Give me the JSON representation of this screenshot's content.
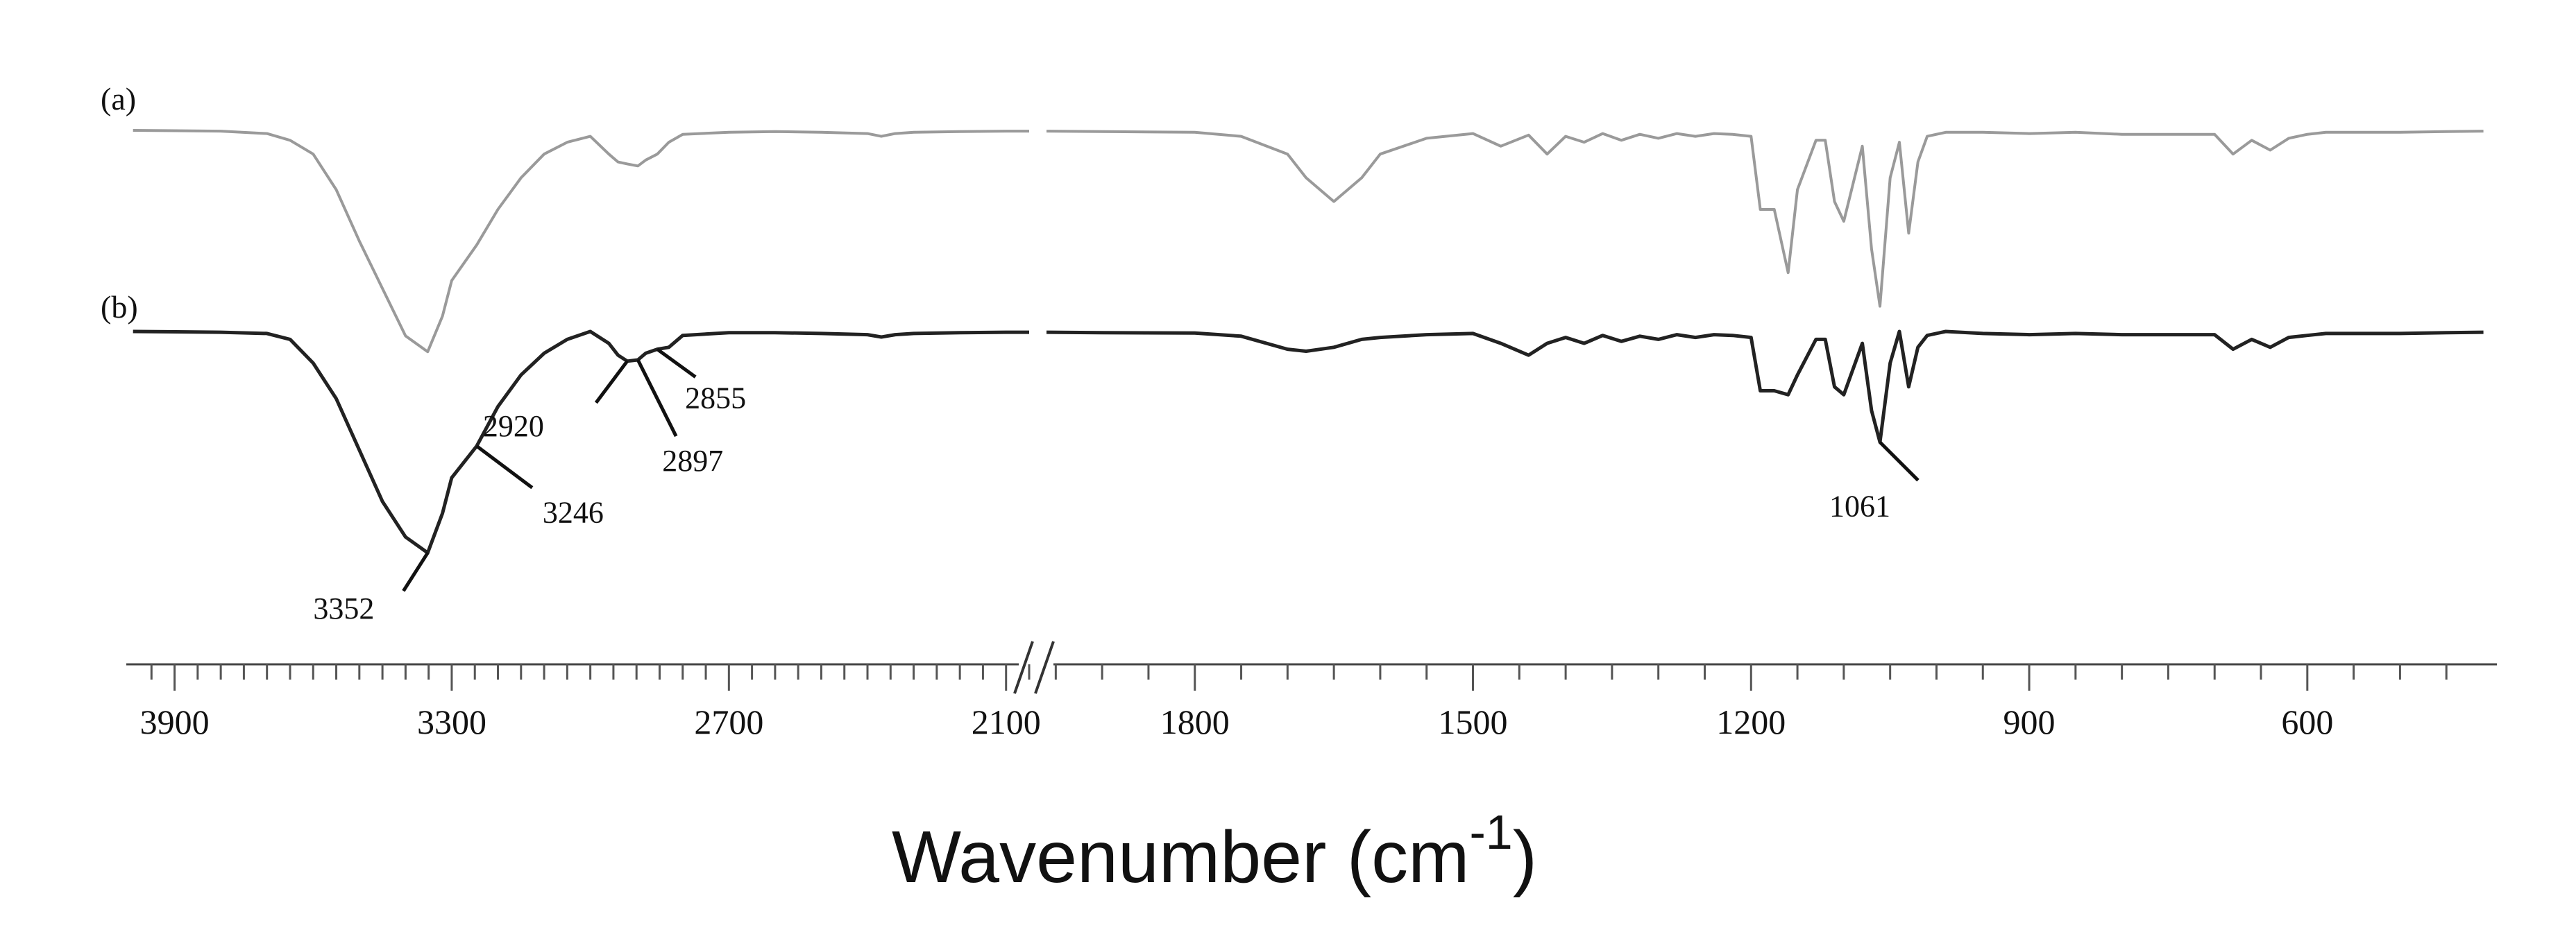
{
  "chart_data": {
    "type": "line",
    "title": "",
    "xlabel": "Wavenumber (cm",
    "xlabel_superscript": "-1",
    "xlabel_close": ")",
    "ylabel": "",
    "x_axis_reversed": true,
    "x_axis_break": [
      2050,
      1960
    ],
    "xlim": [
      4000,
      400
    ],
    "x_ticks": [
      3900,
      3300,
      2700,
      2100,
      1800,
      1500,
      1200,
      900,
      600
    ],
    "grid": false,
    "series_color_a": "#9a9a9a",
    "series_color_b": "#222222",
    "series": [
      {
        "name": "(a)",
        "baseline": 0,
        "x": [
          3990,
          3800,
          3700,
          3650,
          3600,
          3550,
          3500,
          3450,
          3400,
          3352,
          3320,
          3300,
          3246,
          3200,
          3150,
          3100,
          3050,
          3000,
          2960,
          2940,
          2920,
          2897,
          2880,
          2855,
          2830,
          2800,
          2700,
          2600,
          2500,
          2400,
          2370,
          2340,
          2300,
          2200,
          2100,
          2050,
          1960,
          1900,
          1800,
          1750,
          1700,
          1680,
          1650,
          1620,
          1600,
          1550,
          1500,
          1470,
          1440,
          1420,
          1400,
          1380,
          1360,
          1340,
          1320,
          1300,
          1280,
          1260,
          1240,
          1220,
          1200,
          1190,
          1175,
          1160,
          1150,
          1130,
          1120,
          1110,
          1100,
          1080,
          1070,
          1061,
          1050,
          1040,
          1030,
          1020,
          1010,
          990,
          950,
          900,
          850,
          800,
          700,
          680,
          660,
          640,
          620,
          600,
          580,
          560,
          500,
          450,
          410
        ],
        "y": [
          0,
          -2,
          -8,
          -25,
          -60,
          -150,
          -280,
          -400,
          -520,
          -560,
          -470,
          -380,
          -290,
          -200,
          -120,
          -60,
          -30,
          -15,
          -60,
          -80,
          -85,
          -90,
          -75,
          -60,
          -30,
          -10,
          -5,
          -3,
          -5,
          -8,
          -15,
          -8,
          -5,
          -3,
          -2,
          -2,
          -2,
          -3,
          -5,
          -15,
          -60,
          -120,
          -180,
          -120,
          -60,
          -20,
          -8,
          -40,
          -12,
          -60,
          -15,
          -30,
          -8,
          -25,
          -10,
          -20,
          -8,
          -15,
          -8,
          -10,
          -15,
          -200,
          -200,
          -360,
          -150,
          -25,
          -25,
          -180,
          -230,
          -40,
          -300,
          -445,
          -120,
          -30,
          -260,
          -80,
          -15,
          -5,
          -5,
          -8,
          -5,
          -10,
          -10,
          -60,
          -25,
          -50,
          -20,
          -10,
          -5,
          -5,
          -5,
          -3,
          -2
        ]
      },
      {
        "name": "(b)",
        "baseline": 0,
        "x": [
          3990,
          3800,
          3700,
          3650,
          3600,
          3550,
          3500,
          3450,
          3400,
          3352,
          3320,
          3300,
          3246,
          3200,
          3150,
          3100,
          3050,
          3000,
          2960,
          2940,
          2920,
          2897,
          2880,
          2855,
          2830,
          2800,
          2700,
          2600,
          2500,
          2400,
          2370,
          2340,
          2300,
          2200,
          2100,
          2050,
          1960,
          1900,
          1800,
          1750,
          1700,
          1680,
          1650,
          1620,
          1600,
          1550,
          1500,
          1470,
          1440,
          1420,
          1400,
          1380,
          1360,
          1340,
          1320,
          1300,
          1280,
          1260,
          1240,
          1220,
          1200,
          1190,
          1175,
          1160,
          1150,
          1130,
          1120,
          1110,
          1100,
          1080,
          1070,
          1061,
          1050,
          1040,
          1030,
          1020,
          1010,
          990,
          950,
          900,
          850,
          800,
          700,
          680,
          660,
          640,
          620,
          600,
          580,
          560,
          500,
          450,
          410
        ],
        "y": [
          0,
          -2,
          -5,
          -20,
          -80,
          -170,
          -300,
          -430,
          -520,
          -560,
          -460,
          -370,
          -290,
          -190,
          -110,
          -55,
          -20,
          0,
          -30,
          -60,
          -75,
          -72,
          -55,
          -45,
          -40,
          -10,
          -3,
          -3,
          -5,
          -8,
          -14,
          -8,
          -5,
          -3,
          -2,
          -2,
          -2,
          -3,
          -4,
          -12,
          -45,
          -50,
          -40,
          -20,
          -15,
          -8,
          -5,
          -30,
          -60,
          -30,
          -15,
          -30,
          -10,
          -25,
          -12,
          -20,
          -8,
          -15,
          -8,
          -10,
          -15,
          -150,
          -150,
          -160,
          -110,
          -20,
          -20,
          -140,
          -160,
          -30,
          -200,
          -280,
          -80,
          0,
          -140,
          -40,
          -10,
          0,
          -5,
          -8,
          -5,
          -8,
          -8,
          -45,
          -20,
          -40,
          -15,
          -10,
          -5,
          -5,
          -5,
          -3,
          -2
        ]
      }
    ],
    "annotations": [
      {
        "series": "(b)",
        "x": 3352,
        "text": "3352"
      },
      {
        "series": "(b)",
        "x": 3246,
        "text": "3246"
      },
      {
        "series": "(b)",
        "x": 2920,
        "text": "2920"
      },
      {
        "series": "(b)",
        "x": 2897,
        "text": "2897"
      },
      {
        "series": "(b)",
        "x": 2855,
        "text": "2855"
      },
      {
        "series": "(b)",
        "x": 1061,
        "text": "1061"
      }
    ]
  }
}
